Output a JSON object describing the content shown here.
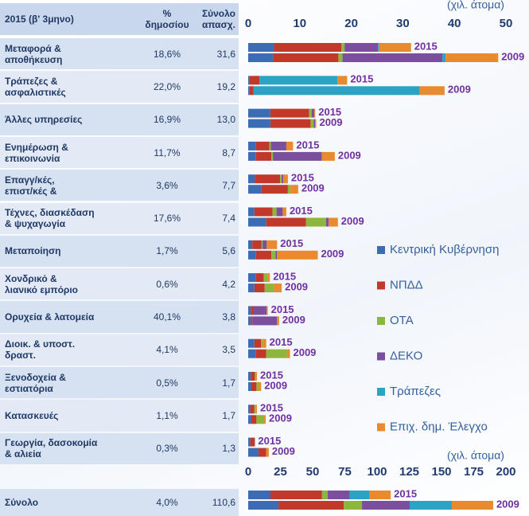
{
  "table": {
    "header": [
      "2015 (β' 3μηνο)",
      "%\nδημοσίου",
      "Σύνολο\nαπασχ."
    ],
    "rows": [
      [
        "Μεταφορά &\nαποθήκευση",
        "18,6%",
        "31,6"
      ],
      [
        "Τράπεζες &\nασφαλιστικές",
        "22,0%",
        "19,2"
      ],
      [
        "Άλλες υπηρεσίες",
        "16,9%",
        "13,0"
      ],
      [
        "Ενημέρωση &\nεπικοινωνία",
        "11,7%",
        "8,7"
      ],
      [
        "Επαγγ/κές,\nεπιστ/κές &",
        "3,6%",
        "7,7"
      ],
      [
        "Τέχνες, διασκέδαση\n& ψυχαγωγία",
        "17,6%",
        "7,4"
      ],
      [
        "Μεταποίηση",
        "1,7%",
        "5,6"
      ],
      [
        "Χονδρικό &\nλιανικό εμπόριο",
        "0,6%",
        "4,2"
      ],
      [
        "Ορυχεία & λατομεία",
        "40,1%",
        "3,8"
      ],
      [
        "Διοικ. & υποστ.\nδραστ.",
        "4,1%",
        "3,5"
      ],
      [
        "Ξενοδοχεία &\nεστιατόρια",
        "0,5%",
        "1,7"
      ],
      [
        "Κατασκευές",
        "1,1%",
        "1,7"
      ],
      [
        "Γεωργία, δασοκομία\n& αλιεία",
        "0,3%",
        "1,3"
      ]
    ],
    "total": [
      "Σύνολο",
      "4,0%",
      "110,6"
    ]
  },
  "chart_data": [
    {
      "type": "bar",
      "stacked": true,
      "unit": "(χιλ. άτομα)",
      "years": [
        "2015",
        "2009"
      ],
      "xlim": [
        0,
        50
      ],
      "xticks": [
        0,
        10,
        20,
        30,
        40,
        50
      ],
      "series": [
        {
          "name": "Κεντρική Κυβέρνηση",
          "color": "#3c6db4",
          "values": [
            [
              5.0,
              4.8
            ],
            [
              0.2,
              0.2
            ],
            [
              4.3,
              4.3
            ],
            [
              1.5,
              1.5
            ],
            [
              1.3,
              2.5
            ],
            [
              1.2,
              3.5
            ],
            [
              0.8,
              1.5
            ],
            [
              1.5,
              1.2
            ],
            [
              0.5,
              0.5
            ],
            [
              1.2,
              1.5
            ],
            [
              0.5,
              0.6
            ],
            [
              0.4,
              0.6
            ],
            [
              0.4,
              2.0
            ]
          ]
        },
        {
          "name": "ΝΠΔΔ",
          "color": "#c0392b",
          "values": [
            [
              13.1,
              12.7
            ],
            [
              2.0,
              0.8
            ],
            [
              7.5,
              7.8
            ],
            [
              2.6,
              3.0
            ],
            [
              4.9,
              5.2
            ],
            [
              3.5,
              7.7
            ],
            [
              1.8,
              3.0
            ],
            [
              1.5,
              2.0
            ],
            [
              0.5,
              0.3
            ],
            [
              1.3,
              2.0
            ],
            [
              0.8,
              1.0
            ],
            [
              0.8,
              1.0
            ],
            [
              0.9,
              1.5
            ]
          ]
        },
        {
          "name": "ΟΤΑ",
          "color": "#8db63c",
          "values": [
            [
              0.6,
              0.8
            ],
            [
              0,
              0
            ],
            [
              0.5,
              0.6
            ],
            [
              0.3,
              0.3
            ],
            [
              0.3,
              0.5
            ],
            [
              0.8,
              3.9
            ],
            [
              0.2,
              0.8
            ],
            [
              0.8,
              1.8
            ],
            [
              0,
              0
            ],
            [
              0.3,
              4.0
            ],
            [
              0.2,
              0.4
            ],
            [
              0.3,
              1.5
            ],
            [
              0,
              0
            ]
          ]
        },
        {
          "name": "ΔΕΚΟ",
          "color": "#7b4f9d",
          "values": [
            [
              6.5,
              19.4
            ],
            [
              0,
              0
            ],
            [
              0.5,
              0.3
            ],
            [
              3.0,
              9.5
            ],
            [
              0.3,
              0
            ],
            [
              1.2,
              0.5
            ],
            [
              0.8,
              0.3
            ],
            [
              0,
              0
            ],
            [
              2.6,
              4.8
            ],
            [
              0,
              0
            ],
            [
              0,
              0
            ],
            [
              0,
              0
            ],
            [
              0,
              0
            ]
          ]
        },
        {
          "name": "Τράπεζες",
          "color": "#2aa3c4",
          "values": [
            [
              0.2,
              0.6
            ],
            [
              15.1,
              32.3
            ],
            [
              0,
              0
            ],
            [
              0,
              0
            ],
            [
              0,
              0
            ],
            [
              0,
              0
            ],
            [
              0,
              0
            ],
            [
              0,
              0
            ],
            [
              0,
              0
            ],
            [
              0,
              0
            ],
            [
              0,
              0
            ],
            [
              0,
              0
            ],
            [
              0,
              0
            ]
          ]
        },
        {
          "name": "Επιχ. δημ. Έλεγχο",
          "color": "#ea8a2e",
          "values": [
            [
              6.2,
              10.2
            ],
            [
              1.9,
              4.8
            ],
            [
              0.2,
              0.2
            ],
            [
              1.3,
              2.5
            ],
            [
              0.9,
              1.5
            ],
            [
              0.7,
              1.8
            ],
            [
              2.0,
              7.9
            ],
            [
              0.4,
              1.5
            ],
            [
              0.2,
              0.4
            ],
            [
              0.7,
              0.6
            ],
            [
              0.2,
              0.5
            ],
            [
              0.2,
              0.3
            ],
            [
              0,
              0.5
            ]
          ]
        }
      ]
    },
    {
      "type": "bar",
      "stacked": true,
      "unit": "(χιλ. άτομα)",
      "years": [
        "2015",
        "2009"
      ],
      "xlim": [
        0,
        200
      ],
      "xticks": [
        0,
        25,
        50,
        75,
        100,
        125,
        150,
        175,
        200
      ],
      "series": [
        {
          "color": "#3c6db4",
          "values": [
            [
              17.3,
              23.5
            ]
          ]
        },
        {
          "color": "#c0392b",
          "values": [
            [
              40.0,
              50.6
            ]
          ]
        },
        {
          "color": "#8db63c",
          "values": [
            [
              4.3,
              14.2
            ]
          ]
        },
        {
          "color": "#7b4f9d",
          "values": [
            [
              17.3,
              37.0
            ]
          ]
        },
        {
          "color": "#2aa3c4",
          "values": [
            [
              15.4,
              32.7
            ]
          ]
        },
        {
          "color": "#ea8a2e",
          "values": [
            [
              16.3,
              32.1
            ]
          ]
        }
      ]
    }
  ]
}
